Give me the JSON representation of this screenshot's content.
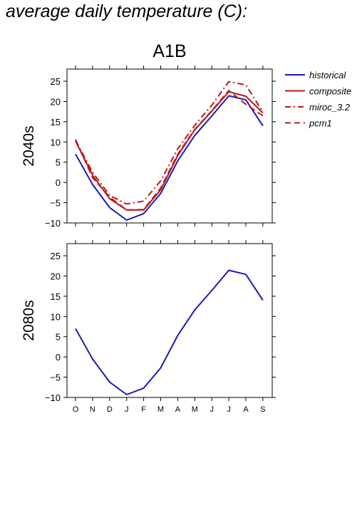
{
  "figure_title": "average daily temperature (C):",
  "scenario": "A1B",
  "months": [
    "O",
    "N",
    "D",
    "J",
    "F",
    "M",
    "A",
    "M",
    "J",
    "J",
    "A",
    "S"
  ],
  "colors": {
    "historical": "#1a1ab8",
    "projection": "#b81a1a",
    "axis": "#000000"
  },
  "chart_data": [
    {
      "type": "line",
      "panel_label": "2040s",
      "ylim": [
        -10,
        28
      ],
      "yticks": [
        -10,
        -5,
        0,
        5,
        10,
        15,
        20,
        25
      ],
      "categories": [
        "O",
        "N",
        "D",
        "J",
        "F",
        "M",
        "A",
        "M",
        "J",
        "J",
        "A",
        "S"
      ],
      "series": [
        {
          "name": "historical",
          "style": "solid",
          "color": "#1a1ab8",
          "values": [
            7.0,
            -0.5,
            -6.2,
            -9.3,
            -7.7,
            -2.7,
            5.3,
            11.6,
            16.4,
            21.4,
            20.4,
            14.0
          ]
        },
        {
          "name": "composite",
          "style": "solid",
          "color": "#b81a1a",
          "values": [
            10.2,
            1.8,
            -4.0,
            -6.8,
            -6.8,
            -1.8,
            6.6,
            13.0,
            17.6,
            22.4,
            21.3,
            17.2
          ]
        },
        {
          "name": "miroc_3.2",
          "style": "dashdot",
          "color": "#b81a1a",
          "values": [
            10.4,
            2.5,
            -3.2,
            -5.3,
            -4.6,
            0.4,
            8.3,
            14.1,
            19.1,
            24.9,
            24.1,
            17.4
          ]
        },
        {
          "name": "pcm1",
          "style": "dashed",
          "color": "#b81a1a",
          "values": [
            10.6,
            1.2,
            -3.6,
            -6.8,
            -6.7,
            -1.4,
            7.0,
            13.1,
            17.7,
            22.7,
            19.3,
            16.5
          ]
        }
      ]
    },
    {
      "type": "line",
      "panel_label": "2080s",
      "ylim": [
        -10,
        28
      ],
      "yticks": [
        -10,
        -5,
        0,
        5,
        10,
        15,
        20,
        25
      ],
      "categories": [
        "O",
        "N",
        "D",
        "J",
        "F",
        "M",
        "A",
        "M",
        "J",
        "J",
        "A",
        "S"
      ],
      "series": [
        {
          "name": "historical",
          "style": "solid",
          "color": "#1a1ab8",
          "values": [
            7.0,
            -0.5,
            -6.2,
            -9.3,
            -7.7,
            -2.7,
            5.3,
            11.6,
            16.4,
            21.4,
            20.4,
            14.0
          ]
        }
      ]
    }
  ],
  "legend": [
    {
      "label": "historical",
      "style": "solid",
      "color": "#1a1ab8"
    },
    {
      "label": "composite",
      "style": "solid",
      "color": "#b81a1a"
    },
    {
      "label": "miroc_3.2",
      "style": "dashdot",
      "color": "#b81a1a"
    },
    {
      "label": "pcm1",
      "style": "dashed",
      "color": "#b81a1a"
    }
  ]
}
